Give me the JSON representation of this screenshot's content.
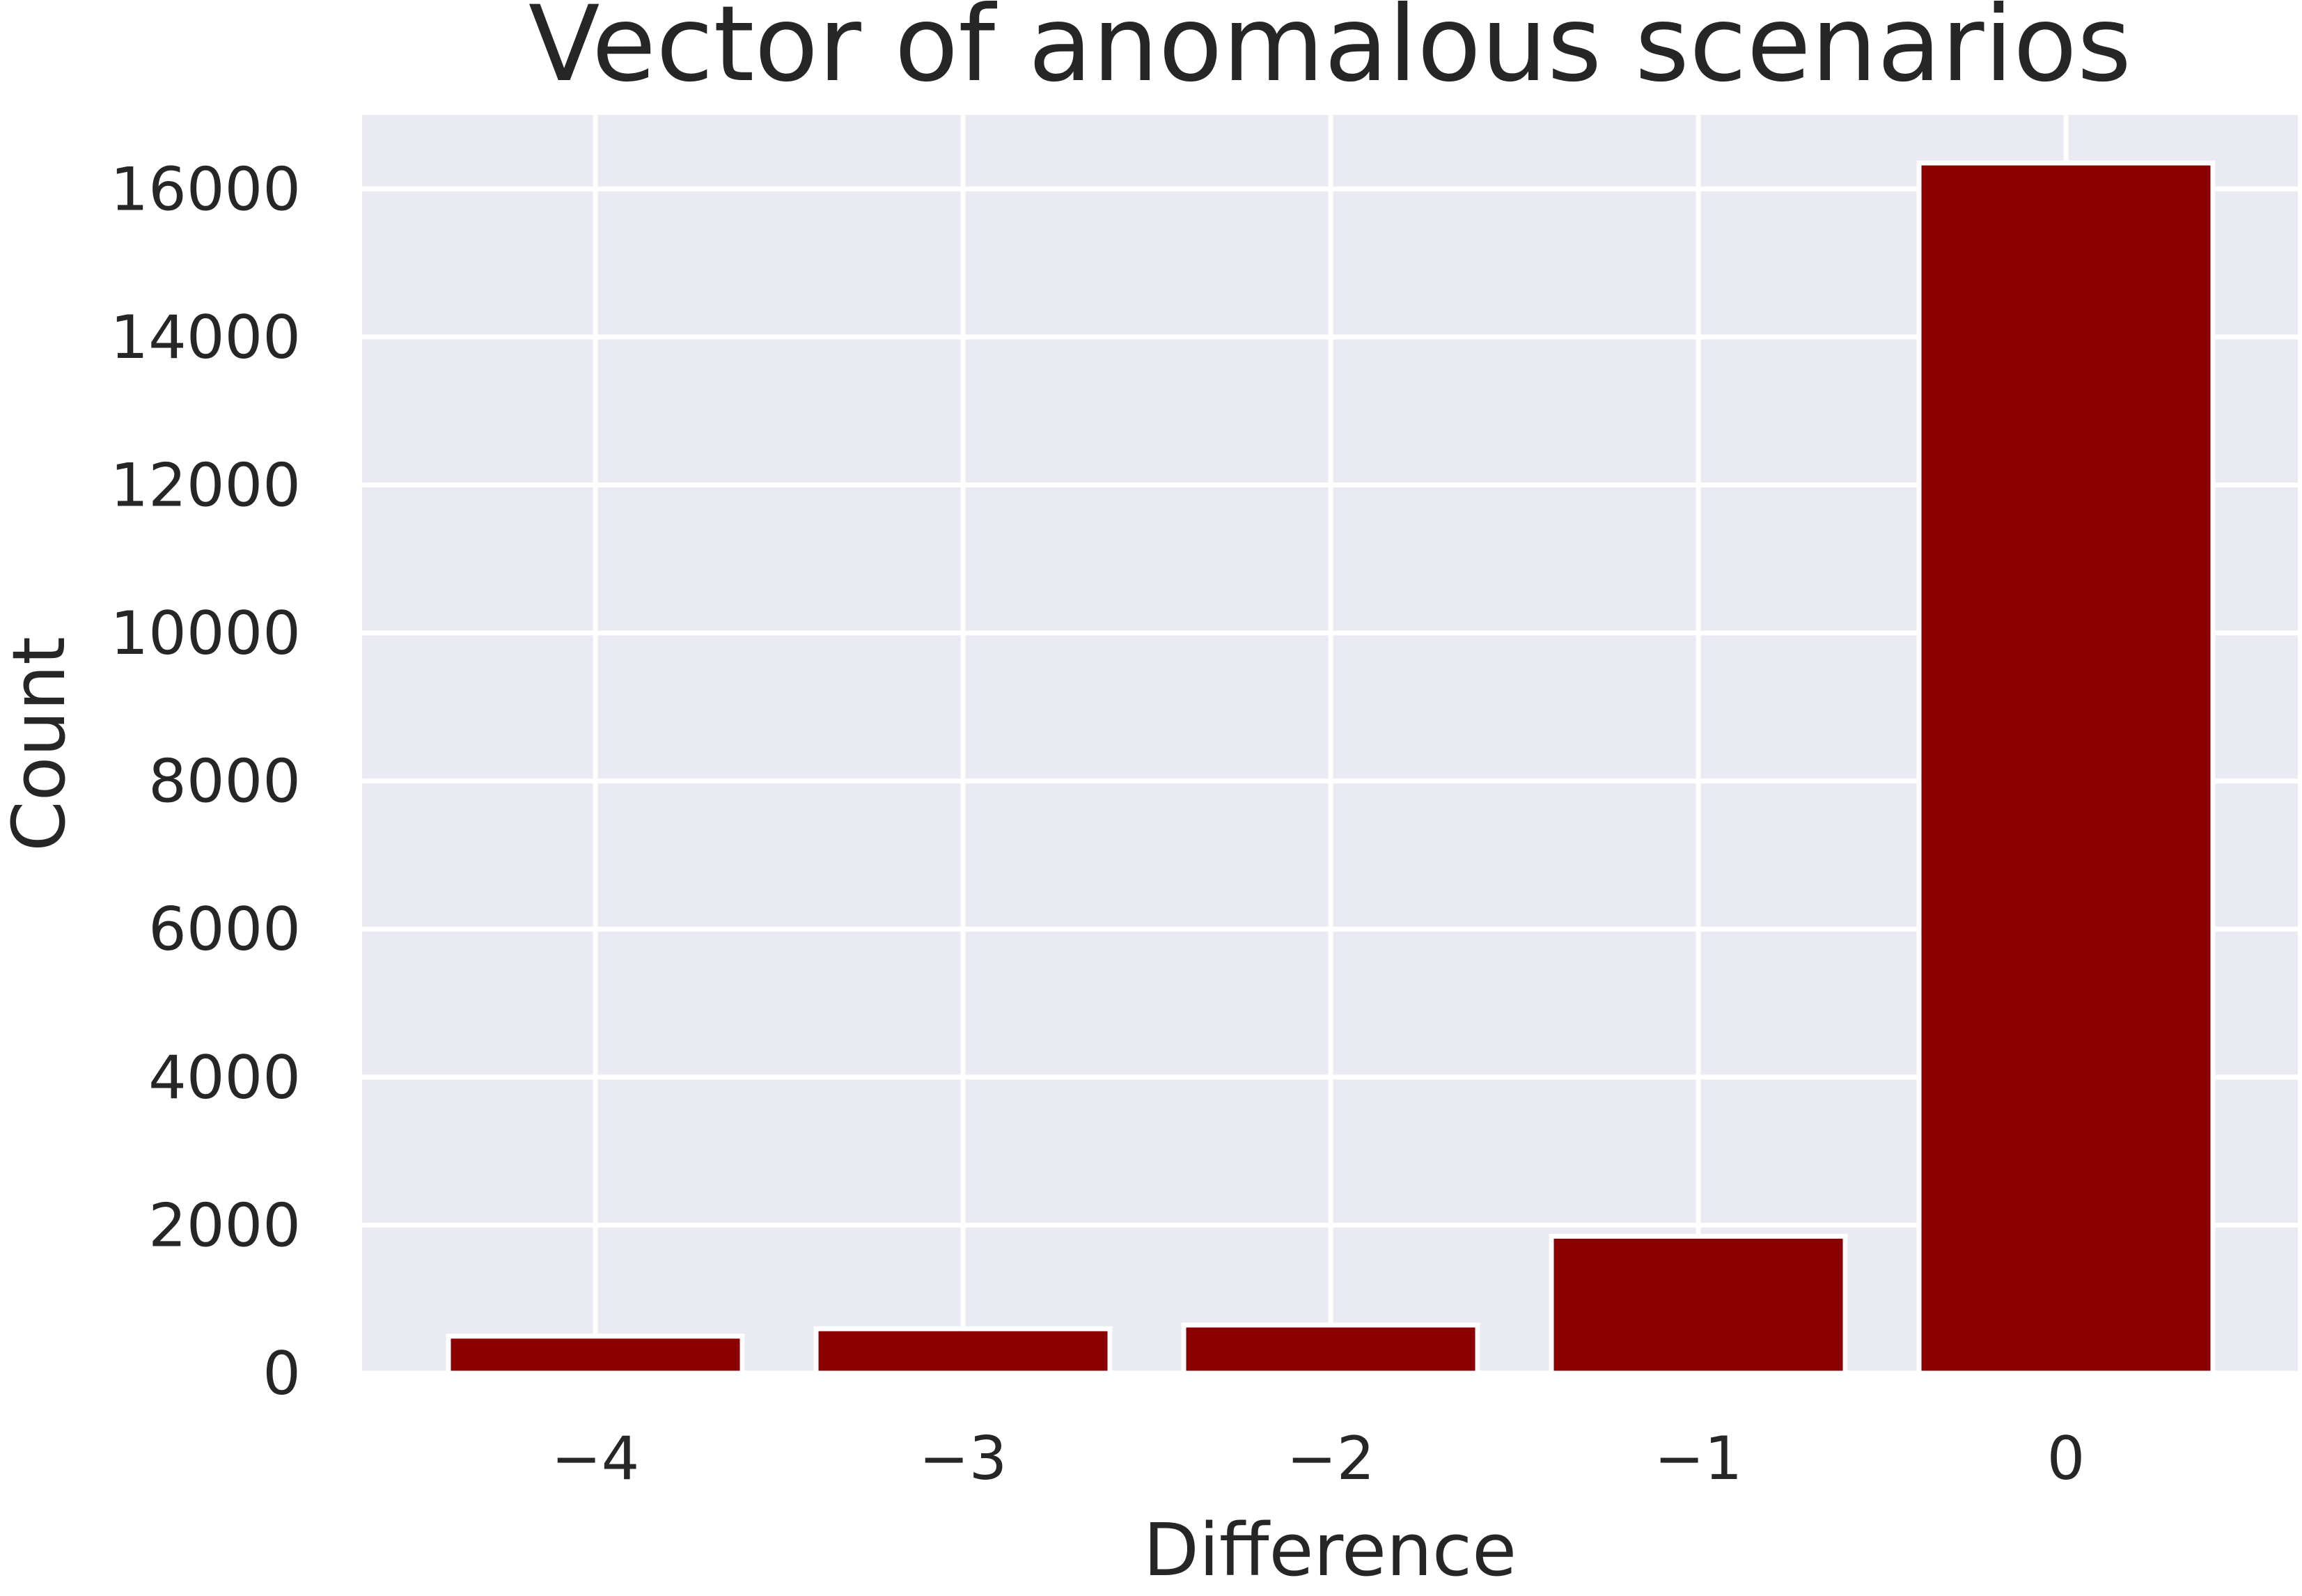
{
  "chart_data": {
    "type": "bar",
    "title": "Vector of anomalous scenarios",
    "xlabel": "Difference",
    "ylabel": "Count",
    "categories": [
      "−4",
      "−3",
      "−2",
      "−1",
      "0"
    ],
    "values": [
      500,
      600,
      650,
      1850,
      16350
    ],
    "ylim": [
      0,
      17000
    ],
    "yticks": [
      0,
      2000,
      4000,
      6000,
      8000,
      10000,
      12000,
      14000,
      16000
    ],
    "ytick_labels": [
      "0",
      "2000",
      "4000",
      "6000",
      "8000",
      "10000",
      "12000",
      "14000",
      "16000"
    ],
    "grid": true,
    "colors": {
      "bar": "#8b0000",
      "background": "#eaeaf2",
      "grid": "#ffffff",
      "text": "#262626"
    }
  }
}
